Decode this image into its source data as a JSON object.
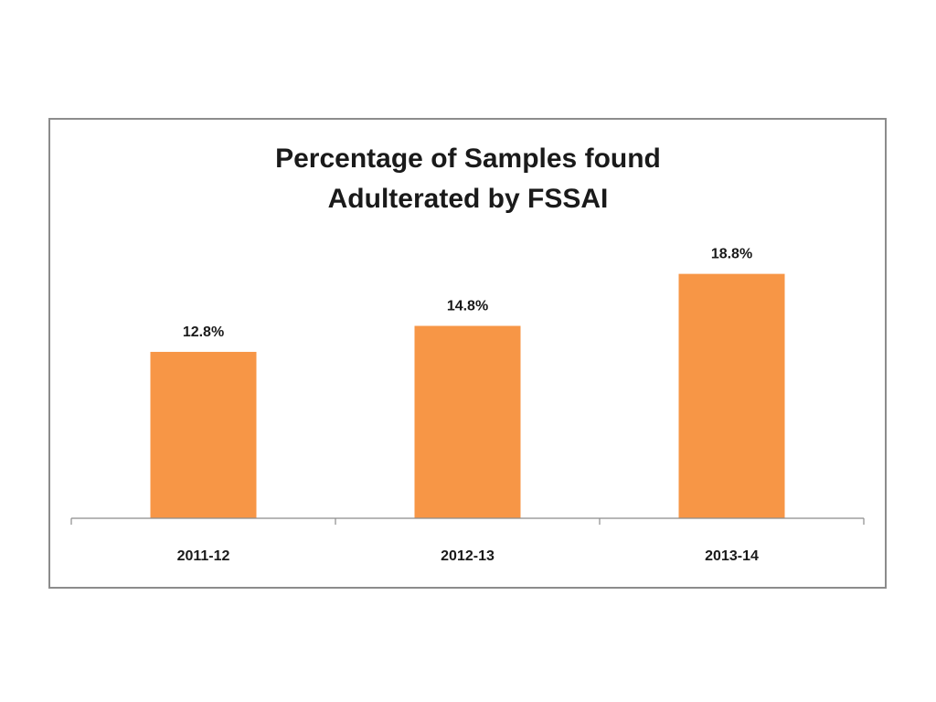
{
  "chart_data": {
    "type": "bar",
    "title_lines": [
      "Percentage of Samples found",
      "Adulterated by FSSAI"
    ],
    "categories": [
      "2011-12",
      "2012-13",
      "2013-14"
    ],
    "values": [
      12.8,
      14.8,
      18.8
    ],
    "data_labels": [
      "12.8%",
      "14.8%",
      "18.8%"
    ],
    "ylim": [
      0,
      22.5
    ],
    "xlabel": "",
    "ylabel": "",
    "bar_color": "#f79646",
    "axis_color": "#8c8c8c",
    "grid": false
  }
}
